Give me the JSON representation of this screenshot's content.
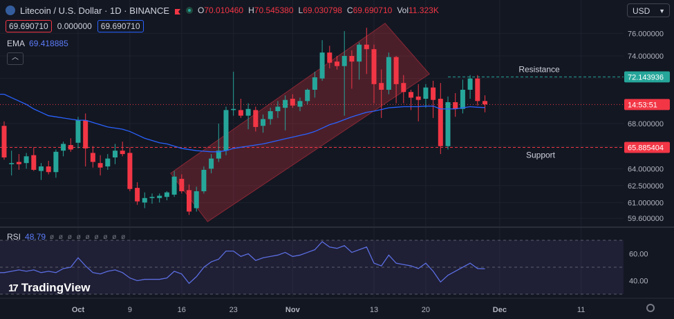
{
  "header": {
    "title": "Litecoin / U.S. Dollar · 1D · BINANCE",
    "ohlc": [
      {
        "k": "O",
        "v": "70.010460"
      },
      {
        "k": "H",
        "v": "70.545380"
      },
      {
        "k": "L",
        "v": "69.030798"
      },
      {
        "k": "C",
        "v": "69.690710"
      },
      {
        "k": "Vol",
        "v": "11.323K"
      }
    ],
    "bid": "69.690710",
    "spread": "0.000000",
    "ask": "69.690710",
    "currency": "USD"
  },
  "ema": {
    "label": "EMA",
    "value": "69.418885"
  },
  "rsi": {
    "label": "RSI",
    "value": "48.79"
  },
  "brand": "TradingView",
  "colors": {
    "up": "#26a69a",
    "down": "#f23645",
    "ema": "#2962ff",
    "rsi": "#5b6ee1",
    "background": "#131722"
  },
  "chart_data": [
    {
      "type": "candlestick",
      "ylim": [
        59.0,
        77.0
      ],
      "y_ticks": [
        "76.000000",
        "74.000000",
        "72.000000",
        "68.000000",
        "66.000000",
        "64.000000",
        "62.500000",
        "61.000000",
        "59.600000"
      ],
      "x_ticks": [
        "Oct",
        "9",
        "16",
        "23",
        "Nov",
        "13",
        "20",
        "Dec",
        "11"
      ],
      "x_tick_index": [
        10,
        17,
        24,
        31,
        39,
        50,
        57,
        67,
        78
      ],
      "candles": [
        {
          "o": 67.8,
          "h": 68.2,
          "l": 64.8,
          "c": 65.0
        },
        {
          "o": 64.4,
          "h": 65.6,
          "l": 63.4,
          "c": 64.5
        },
        {
          "o": 64.6,
          "h": 65.3,
          "l": 63.9,
          "c": 64.4
        },
        {
          "o": 64.5,
          "h": 65.4,
          "l": 64.0,
          "c": 65.1
        },
        {
          "o": 65.2,
          "h": 65.9,
          "l": 63.8,
          "c": 63.9
        },
        {
          "o": 63.8,
          "h": 64.5,
          "l": 63.0,
          "c": 64.2
        },
        {
          "o": 64.2,
          "h": 64.7,
          "l": 63.5,
          "c": 63.7
        },
        {
          "o": 63.7,
          "h": 65.7,
          "l": 63.2,
          "c": 65.5
        },
        {
          "o": 65.6,
          "h": 66.4,
          "l": 65.1,
          "c": 66.2
        },
        {
          "o": 66.1,
          "h": 66.7,
          "l": 65.5,
          "c": 65.7
        },
        {
          "o": 66.3,
          "h": 68.6,
          "l": 65.8,
          "c": 68.3
        },
        {
          "o": 68.3,
          "h": 68.9,
          "l": 64.2,
          "c": 65.8
        },
        {
          "o": 65.4,
          "h": 66.0,
          "l": 64.1,
          "c": 64.6
        },
        {
          "o": 64.5,
          "h": 65.2,
          "l": 63.4,
          "c": 64.1
        },
        {
          "o": 64.2,
          "h": 65.3,
          "l": 63.9,
          "c": 64.9
        },
        {
          "o": 65.0,
          "h": 66.2,
          "l": 64.4,
          "c": 65.6
        },
        {
          "o": 65.6,
          "h": 66.4,
          "l": 65.1,
          "c": 65.3
        },
        {
          "o": 65.4,
          "h": 65.9,
          "l": 62.0,
          "c": 62.2
        },
        {
          "o": 62.3,
          "h": 62.8,
          "l": 60.8,
          "c": 61.1
        },
        {
          "o": 61.0,
          "h": 61.9,
          "l": 60.5,
          "c": 61.4
        },
        {
          "o": 61.4,
          "h": 61.8,
          "l": 60.9,
          "c": 61.5
        },
        {
          "o": 61.4,
          "h": 61.8,
          "l": 61.0,
          "c": 61.6
        },
        {
          "o": 61.5,
          "h": 62.0,
          "l": 61.2,
          "c": 61.9
        },
        {
          "o": 61.7,
          "h": 63.8,
          "l": 61.5,
          "c": 63.3
        },
        {
          "o": 63.1,
          "h": 63.5,
          "l": 61.8,
          "c": 62.0
        },
        {
          "o": 62.1,
          "h": 62.6,
          "l": 59.9,
          "c": 60.2
        },
        {
          "o": 60.5,
          "h": 62.4,
          "l": 60.2,
          "c": 62.0
        },
        {
          "o": 62.0,
          "h": 64.2,
          "l": 61.8,
          "c": 63.9
        },
        {
          "o": 64.0,
          "h": 65.3,
          "l": 63.6,
          "c": 64.9
        },
        {
          "o": 64.9,
          "h": 68.0,
          "l": 64.6,
          "c": 65.6
        },
        {
          "o": 65.6,
          "h": 69.5,
          "l": 65.2,
          "c": 69.2
        },
        {
          "o": 69.2,
          "h": 72.6,
          "l": 68.7,
          "c": 69.3
        },
        {
          "o": 69.2,
          "h": 70.2,
          "l": 68.5,
          "c": 68.7
        },
        {
          "o": 68.7,
          "h": 69.8,
          "l": 67.5,
          "c": 69.3
        },
        {
          "o": 69.2,
          "h": 69.5,
          "l": 67.3,
          "c": 67.7
        },
        {
          "o": 67.8,
          "h": 68.8,
          "l": 67.2,
          "c": 68.4
        },
        {
          "o": 68.4,
          "h": 69.4,
          "l": 67.9,
          "c": 69.1
        },
        {
          "o": 69.1,
          "h": 70.0,
          "l": 68.5,
          "c": 69.5
        },
        {
          "o": 69.4,
          "h": 70.5,
          "l": 67.4,
          "c": 70.1
        },
        {
          "o": 70.2,
          "h": 70.6,
          "l": 69.4,
          "c": 69.6
        },
        {
          "o": 69.5,
          "h": 70.3,
          "l": 69.1,
          "c": 70.0
        },
        {
          "o": 70.0,
          "h": 71.1,
          "l": 69.7,
          "c": 71.0
        },
        {
          "o": 71.0,
          "h": 72.6,
          "l": 70.3,
          "c": 72.1
        },
        {
          "o": 72.0,
          "h": 75.4,
          "l": 71.8,
          "c": 74.3
        },
        {
          "o": 74.3,
          "h": 74.9,
          "l": 72.9,
          "c": 73.4
        },
        {
          "o": 73.5,
          "h": 74.0,
          "l": 72.8,
          "c": 73.1
        },
        {
          "o": 73.1,
          "h": 76.2,
          "l": 68.7,
          "c": 74.0
        },
        {
          "o": 74.0,
          "h": 74.5,
          "l": 71.1,
          "c": 73.5
        },
        {
          "o": 73.5,
          "h": 75.2,
          "l": 71.9,
          "c": 75.0
        },
        {
          "o": 75.0,
          "h": 76.5,
          "l": 72.4,
          "c": 74.6
        },
        {
          "o": 74.6,
          "h": 75.0,
          "l": 69.8,
          "c": 71.5
        },
        {
          "o": 71.6,
          "h": 72.8,
          "l": 68.5,
          "c": 71.0
        },
        {
          "o": 71.0,
          "h": 74.3,
          "l": 70.6,
          "c": 73.9
        },
        {
          "o": 73.9,
          "h": 74.0,
          "l": 69.8,
          "c": 71.5
        },
        {
          "o": 71.6,
          "h": 72.3,
          "l": 69.8,
          "c": 70.8
        },
        {
          "o": 70.8,
          "h": 71.0,
          "l": 69.2,
          "c": 70.3
        },
        {
          "o": 70.4,
          "h": 71.5,
          "l": 68.2,
          "c": 70.1
        },
        {
          "o": 70.2,
          "h": 71.5,
          "l": 69.4,
          "c": 71.2
        },
        {
          "o": 71.2,
          "h": 71.8,
          "l": 68.5,
          "c": 70.1
        },
        {
          "o": 70.2,
          "h": 71.6,
          "l": 65.3,
          "c": 66.0
        },
        {
          "o": 66.0,
          "h": 70.4,
          "l": 65.7,
          "c": 69.9
        },
        {
          "o": 69.9,
          "h": 70.7,
          "l": 68.6,
          "c": 69.3
        },
        {
          "o": 69.3,
          "h": 71.9,
          "l": 68.9,
          "c": 71.0
        },
        {
          "o": 71.0,
          "h": 72.3,
          "l": 70.2,
          "c": 72.0
        },
        {
          "o": 72.0,
          "h": 72.3,
          "l": 69.6,
          "c": 70.0
        },
        {
          "o": 70.0,
          "h": 70.5,
          "l": 69.0,
          "c": 69.7
        }
      ],
      "ema_line": [
        70.6,
        70.3,
        70.0,
        69.7,
        69.3,
        69.0,
        68.7,
        68.6,
        68.5,
        68.4,
        68.3,
        68.3,
        68.1,
        67.9,
        67.7,
        67.6,
        67.5,
        67.3,
        67.0,
        66.7,
        66.5,
        66.3,
        66.2,
        66.0,
        65.8,
        65.7,
        65.6,
        65.55,
        65.5,
        65.5,
        65.6,
        65.8,
        65.9,
        66.0,
        66.1,
        66.2,
        66.35,
        66.5,
        66.65,
        66.8,
        66.95,
        67.1,
        67.3,
        67.6,
        67.9,
        68.1,
        68.35,
        68.6,
        68.8,
        69.0,
        69.1,
        69.25,
        69.4,
        69.45,
        69.5,
        69.5,
        69.5,
        69.55,
        69.55,
        69.3,
        69.3,
        69.3,
        69.4,
        69.5,
        69.45,
        69.42
      ],
      "levels": [
        {
          "label": "Resistance",
          "value": 72.143936,
          "tag": "72.143936",
          "color": "#26a69a"
        },
        {
          "label": "Support",
          "value": 65.885404,
          "tag": "65.885404",
          "color": "#f23645"
        }
      ],
      "current_price": {
        "value": 69.69071,
        "tag": "14:53:51"
      }
    },
    {
      "type": "line",
      "series": [
        {
          "name": "RSI",
          "values": [
            46,
            47,
            48,
            47,
            48,
            46,
            47,
            46,
            49,
            50,
            57,
            51,
            46,
            45,
            47,
            48,
            46,
            42,
            40,
            41,
            41,
            41,
            42,
            47,
            45,
            38,
            43,
            50,
            54,
            56,
            62,
            62,
            58,
            60,
            55,
            57,
            58,
            59,
            61,
            58,
            59,
            61,
            63,
            69,
            65,
            64,
            66,
            61,
            63,
            65,
            53,
            51,
            59,
            53,
            52,
            51,
            49,
            53,
            47,
            39,
            44,
            47,
            50,
            53,
            49,
            48.79
          ]
        }
      ],
      "ylim": [
        30,
        70
      ],
      "y_ticks": [
        "60.00",
        "40.00"
      ],
      "bands": [
        70,
        50,
        30
      ]
    }
  ]
}
